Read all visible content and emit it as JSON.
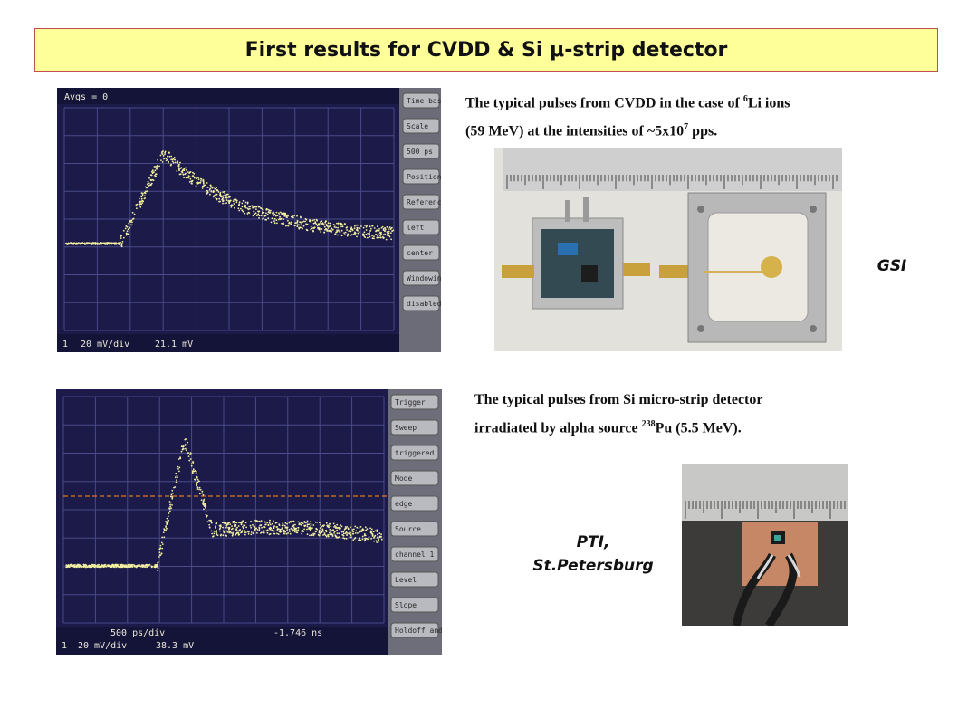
{
  "title": "First results for CVDD & Si μ-strip detector",
  "top": {
    "caption_line1_pre": "The typical pulses from CVDD in the case of ",
    "caption_sup1": "6",
    "caption_line1_post": "Li ions",
    "caption_line2_pre": "(59 MeV) at the intensities of  ~5x10",
    "caption_sup2": "7",
    "caption_line2_post": " pps.",
    "lab_label": "GSI",
    "scope": {
      "avgs": "Avgs = 0",
      "scale_div": "20 mV/div",
      "value": "21.1 mV",
      "channel": "1",
      "side": [
        "Time base",
        "Scale",
        "500 ps",
        "Position",
        "Reference",
        "left",
        "center",
        "Windowing",
        "disabled"
      ]
    }
  },
  "bottom": {
    "caption_line1": "The typical pulses from Si micro-strip detector",
    "caption_line2_pre": "irradiated by alpha source ",
    "caption_sup": "238",
    "caption_line2_post": "Pu (5.5 MeV).",
    "lab_label_line1": "PTI,",
    "lab_label_line2": "St.Petersburg",
    "scope": {
      "scale_div": "20 mV/div",
      "value": "38.3 mV",
      "time_div": "500 ps/div",
      "time_offset": "-1.746 ns",
      "channel": "1",
      "side": [
        "Trigger",
        "Sweep",
        "triggered",
        "Mode",
        "edge",
        "Source",
        "channel 1",
        "Level",
        "Slope",
        "Holdoff and"
      ]
    }
  },
  "colors": {
    "title_bg": "#ffff99",
    "title_border": "#c0504d",
    "scope_bg": "#1c1a4a",
    "trace": "#f2f0a0"
  }
}
